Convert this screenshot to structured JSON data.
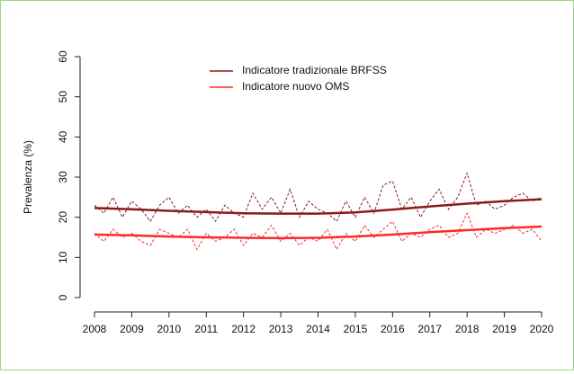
{
  "chart_data": {
    "type": "line",
    "y_label": "Prevalenza (%)",
    "x": [
      2008,
      2008.25,
      2008.5,
      2008.75,
      2009,
      2009.25,
      2009.5,
      2009.75,
      2010,
      2010.25,
      2010.5,
      2010.75,
      2011,
      2011.25,
      2011.5,
      2011.75,
      2012,
      2012.25,
      2012.5,
      2012.75,
      2013,
      2013.25,
      2013.5,
      2013.75,
      2014,
      2014.25,
      2014.5,
      2014.75,
      2015,
      2015.25,
      2015.5,
      2015.75,
      2016,
      2016.25,
      2016.5,
      2016.75,
      2017,
      2017.25,
      2017.5,
      2017.75,
      2018,
      2018.25,
      2018.5,
      2018.75,
      2019,
      2019.25,
      2019.5,
      2019.75,
      2020
    ],
    "trend_x": [
      2008,
      2009,
      2010,
      2011,
      2012,
      2013,
      2014,
      2015,
      2016,
      2017,
      2018,
      2019,
      2020
    ],
    "series": [
      {
        "name": "Indicatore tradizionale BRFSS",
        "color": "#8b1a1a",
        "values": [
          23,
          21,
          25,
          20,
          24,
          22,
          19,
          23,
          25,
          21,
          23,
          20,
          22,
          19,
          23,
          21,
          20,
          26,
          22,
          25,
          21,
          27,
          20,
          24,
          22,
          21,
          19,
          24,
          20,
          25,
          21,
          28,
          29,
          22,
          25,
          20,
          24,
          27,
          22,
          25,
          31,
          23,
          24,
          22,
          23,
          25,
          26,
          24,
          25
        ],
        "trend": [
          22.3,
          22.0,
          21.6,
          21.3,
          21.0,
          20.9,
          20.9,
          21.2,
          21.9,
          22.7,
          23.4,
          24.0,
          24.5
        ]
      },
      {
        "name": "Indicatore nuovo OMS",
        "color": "#ff2a2a",
        "values": [
          16,
          14,
          17,
          15,
          16,
          14,
          13,
          17,
          16,
          15,
          17,
          12,
          16,
          14,
          15,
          17,
          13,
          16,
          15,
          18,
          14,
          16,
          13,
          15,
          14,
          17,
          12,
          16,
          14,
          18,
          15,
          17,
          19,
          14,
          16,
          15,
          17,
          18,
          15,
          16,
          21,
          15,
          17,
          16,
          17,
          18,
          16,
          17,
          14
        ],
        "trend": [
          15.7,
          15.5,
          15.2,
          15.0,
          14.9,
          14.8,
          14.9,
          15.2,
          15.7,
          16.3,
          16.8,
          17.3,
          17.7
        ]
      }
    ],
    "xlim": [
      2008,
      2020
    ],
    "xticks": [
      2008,
      2009,
      2010,
      2011,
      2012,
      2013,
      2014,
      2015,
      2016,
      2017,
      2018,
      2019,
      2020
    ],
    "ylim": [
      0,
      60
    ],
    "yticks": [
      0,
      10,
      20,
      30,
      40,
      50,
      60
    ],
    "grid": false,
    "legend": "top"
  }
}
